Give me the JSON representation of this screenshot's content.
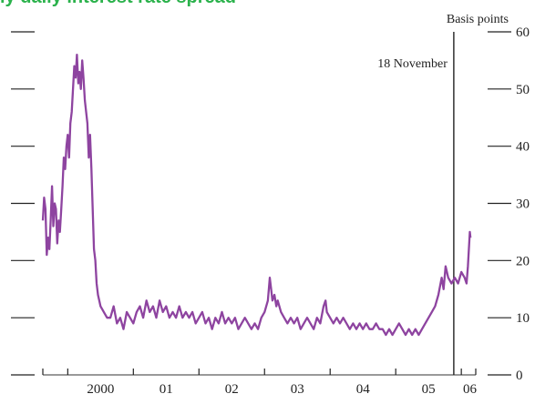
{
  "title_fragment": "ly daily interest rate spread",
  "chart_data": {
    "type": "line",
    "title": "",
    "ylabel": "Basis points",
    "xlabel": "",
    "ylim": [
      0,
      60
    ],
    "y_ticks": [
      0,
      10,
      20,
      30,
      40,
      50,
      60
    ],
    "x_tick_labels": [
      "2000",
      "01",
      "02",
      "03",
      "04",
      "05",
      "06"
    ],
    "x_range": [
      1999.62,
      2006.22
    ],
    "annotation": {
      "label": "18 November",
      "x": 2005.885
    },
    "line_color": "#8e44a0",
    "grid": false,
    "series": [
      {
        "values": [
          [
            1999.62,
            27
          ],
          [
            1999.64,
            31
          ],
          [
            1999.66,
            29
          ],
          [
            1999.68,
            21
          ],
          [
            1999.7,
            24
          ],
          [
            1999.72,
            22
          ],
          [
            1999.74,
            27
          ],
          [
            1999.76,
            33
          ],
          [
            1999.78,
            26
          ],
          [
            1999.8,
            30
          ],
          [
            1999.82,
            29
          ],
          [
            1999.84,
            23
          ],
          [
            1999.86,
            27
          ],
          [
            1999.88,
            25
          ],
          [
            1999.9,
            29
          ],
          [
            1999.92,
            33
          ],
          [
            1999.94,
            38
          ],
          [
            1999.96,
            36
          ],
          [
            1999.98,
            40
          ],
          [
            2000.0,
            42
          ],
          [
            2000.02,
            38
          ],
          [
            2000.04,
            44
          ],
          [
            2000.06,
            46
          ],
          [
            2000.08,
            50
          ],
          [
            2000.1,
            54
          ],
          [
            2000.12,
            52
          ],
          [
            2000.14,
            56
          ],
          [
            2000.16,
            51
          ],
          [
            2000.18,
            53
          ],
          [
            2000.2,
            50
          ],
          [
            2000.22,
            55
          ],
          [
            2000.24,
            52
          ],
          [
            2000.26,
            48
          ],
          [
            2000.28,
            46
          ],
          [
            2000.3,
            44
          ],
          [
            2000.32,
            38
          ],
          [
            2000.34,
            42
          ],
          [
            2000.36,
            36
          ],
          [
            2000.38,
            29
          ],
          [
            2000.4,
            22
          ],
          [
            2000.42,
            20
          ],
          [
            2000.44,
            16
          ],
          [
            2000.46,
            14
          ],
          [
            2000.48,
            13
          ],
          [
            2000.5,
            12
          ],
          [
            2000.55,
            11
          ],
          [
            2000.6,
            10
          ],
          [
            2000.65,
            10
          ],
          [
            2000.7,
            12
          ],
          [
            2000.75,
            9
          ],
          [
            2000.8,
            10
          ],
          [
            2000.85,
            8
          ],
          [
            2000.9,
            11
          ],
          [
            2000.95,
            10
          ],
          [
            2001.0,
            9
          ],
          [
            2001.05,
            11
          ],
          [
            2001.1,
            12
          ],
          [
            2001.15,
            10
          ],
          [
            2001.2,
            13
          ],
          [
            2001.25,
            11
          ],
          [
            2001.3,
            12
          ],
          [
            2001.35,
            10
          ],
          [
            2001.4,
            13
          ],
          [
            2001.45,
            11
          ],
          [
            2001.5,
            12
          ],
          [
            2001.55,
            10
          ],
          [
            2001.6,
            11
          ],
          [
            2001.65,
            10
          ],
          [
            2001.7,
            12
          ],
          [
            2001.75,
            10
          ],
          [
            2001.8,
            11
          ],
          [
            2001.85,
            10
          ],
          [
            2001.9,
            11
          ],
          [
            2001.95,
            9
          ],
          [
            2002.0,
            10
          ],
          [
            2002.05,
            11
          ],
          [
            2002.1,
            9
          ],
          [
            2002.15,
            10
          ],
          [
            2002.2,
            8
          ],
          [
            2002.25,
            10
          ],
          [
            2002.3,
            9
          ],
          [
            2002.35,
            11
          ],
          [
            2002.4,
            9
          ],
          [
            2002.45,
            10
          ],
          [
            2002.5,
            9
          ],
          [
            2002.55,
            10
          ],
          [
            2002.6,
            8
          ],
          [
            2002.65,
            9
          ],
          [
            2002.7,
            10
          ],
          [
            2002.75,
            9
          ],
          [
            2002.8,
            8
          ],
          [
            2002.85,
            9
          ],
          [
            2002.9,
            8
          ],
          [
            2002.95,
            10
          ],
          [
            2003.0,
            11
          ],
          [
            2003.05,
            13
          ],
          [
            2003.08,
            17
          ],
          [
            2003.1,
            15
          ],
          [
            2003.12,
            13
          ],
          [
            2003.15,
            14
          ],
          [
            2003.18,
            12
          ],
          [
            2003.2,
            13
          ],
          [
            2003.25,
            11
          ],
          [
            2003.3,
            10
          ],
          [
            2003.35,
            9
          ],
          [
            2003.4,
            10
          ],
          [
            2003.45,
            9
          ],
          [
            2003.5,
            10
          ],
          [
            2003.55,
            8
          ],
          [
            2003.6,
            9
          ],
          [
            2003.65,
            10
          ],
          [
            2003.7,
            9
          ],
          [
            2003.75,
            8
          ],
          [
            2003.8,
            10
          ],
          [
            2003.85,
            9
          ],
          [
            2003.9,
            12
          ],
          [
            2003.93,
            13
          ],
          [
            2003.95,
            11
          ],
          [
            2004.0,
            10
          ],
          [
            2004.05,
            9
          ],
          [
            2004.1,
            10
          ],
          [
            2004.15,
            9
          ],
          [
            2004.2,
            10
          ],
          [
            2004.25,
            9
          ],
          [
            2004.3,
            8
          ],
          [
            2004.35,
            9
          ],
          [
            2004.4,
            8
          ],
          [
            2004.45,
            9
          ],
          [
            2004.5,
            8
          ],
          [
            2004.55,
            9
          ],
          [
            2004.6,
            8
          ],
          [
            2004.65,
            8
          ],
          [
            2004.7,
            9
          ],
          [
            2004.75,
            8
          ],
          [
            2004.8,
            8
          ],
          [
            2004.85,
            7
          ],
          [
            2004.9,
            8
          ],
          [
            2004.95,
            7
          ],
          [
            2005.0,
            8
          ],
          [
            2005.05,
            9
          ],
          [
            2005.1,
            8
          ],
          [
            2005.15,
            7
          ],
          [
            2005.2,
            8
          ],
          [
            2005.25,
            7
          ],
          [
            2005.3,
            8
          ],
          [
            2005.35,
            7
          ],
          [
            2005.4,
            8
          ],
          [
            2005.45,
            9
          ],
          [
            2005.5,
            10
          ],
          [
            2005.55,
            11
          ],
          [
            2005.6,
            12
          ],
          [
            2005.65,
            14
          ],
          [
            2005.7,
            17
          ],
          [
            2005.73,
            15
          ],
          [
            2005.76,
            19
          ],
          [
            2005.8,
            17
          ],
          [
            2005.85,
            16
          ],
          [
            2005.9,
            17
          ],
          [
            2005.95,
            16
          ],
          [
            2006.0,
            18
          ],
          [
            2006.05,
            17
          ],
          [
            2006.08,
            16
          ],
          [
            2006.1,
            19
          ],
          [
            2006.12,
            23
          ],
          [
            2006.13,
            25
          ],
          [
            2006.14,
            24
          ]
        ]
      }
    ]
  }
}
